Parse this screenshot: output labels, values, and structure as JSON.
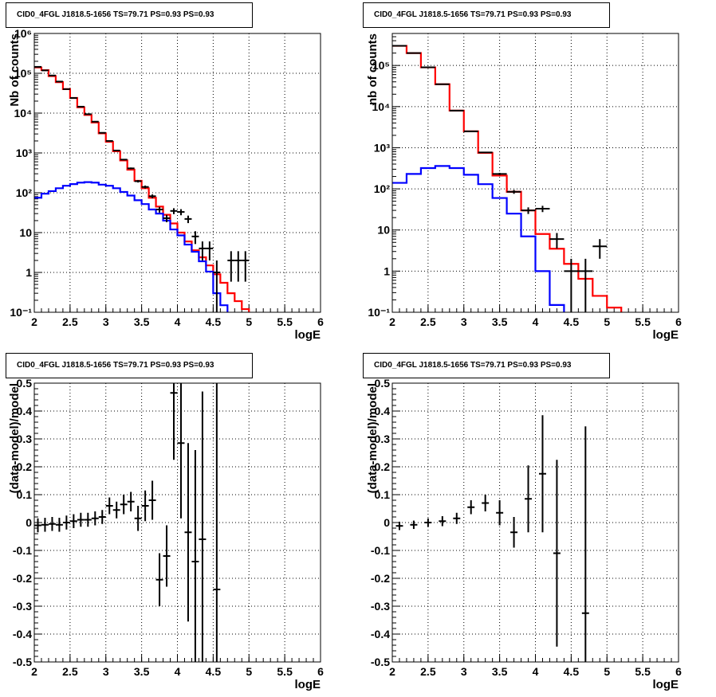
{
  "chart_data": [
    {
      "type": "line",
      "title": "CID0_4FGL J1818.5-1656 TS=79.71 PS=0.93 PS=0.93",
      "xlabel": "logE",
      "ylabel": "Nb of counts",
      "xlim": [
        2,
        6
      ],
      "ylim": [
        0.1,
        1000000
      ],
      "yscale": "log",
      "grid": true,
      "xticks": [
        "2",
        "2.5",
        "3",
        "3.5",
        "4",
        "4.5",
        "5",
        "5.5",
        "6"
      ],
      "yticks": [
        "10⁻¹",
        "1",
        "10",
        "10²",
        "10³",
        "10⁴",
        "10⁵",
        "10⁶"
      ],
      "bin_edges": [
        2.0,
        2.1,
        2.2,
        2.3,
        2.4,
        2.5,
        2.6,
        2.7,
        2.8,
        2.9,
        3.0,
        3.1,
        3.2,
        3.3,
        3.4,
        3.5,
        3.6,
        3.7,
        3.8,
        3.9,
        4.0,
        4.1,
        4.2,
        4.3,
        4.4,
        4.5,
        4.6,
        4.7,
        4.8,
        4.9,
        5.0,
        5.1,
        5.2,
        5.3,
        5.4,
        5.5,
        5.6,
        5.7,
        5.8,
        5.9,
        6.0
      ],
      "series": [
        {
          "color": "#ff0000",
          "style": "step",
          "values": [
            140000,
            120000,
            85000,
            60000,
            40000,
            24000,
            14000,
            9000,
            5800,
            3100,
            1900,
            1100,
            650,
            380,
            200,
            130,
            75,
            45,
            28,
            17,
            10,
            6,
            3.6,
            2.4,
            1.5,
            0.9,
            0.55,
            0.3,
            0.19,
            0.12,
            0.08,
            0.055,
            0.05,
            0.05,
            0.05,
            0.05,
            0.05,
            0.05,
            0.05,
            0.05
          ]
        },
        {
          "color": "#0000ff",
          "style": "step",
          "values": [
            75,
            95,
            110,
            130,
            150,
            165,
            180,
            185,
            180,
            160,
            150,
            130,
            105,
            85,
            65,
            52,
            38,
            30,
            20,
            12,
            8.5,
            5,
            3.3,
            1.9,
            1.05,
            0.3,
            0.15,
            0.09,
            0.05,
            0.05,
            0.05,
            0.05,
            0.05,
            0.05,
            0.05,
            0.05,
            0.05,
            0.05,
            0.05,
            0.05
          ]
        },
        {
          "color": "#000000",
          "style": "points",
          "points": [
            {
              "x": 2.05,
              "y": 145000
            },
            {
              "x": 2.15,
              "y": 118000
            },
            {
              "x": 2.25,
              "y": 88000
            },
            {
              "x": 2.35,
              "y": 62000
            },
            {
              "x": 2.45,
              "y": 40000
            },
            {
              "x": 2.55,
              "y": 24000
            },
            {
              "x": 2.65,
              "y": 14500
            },
            {
              "x": 2.75,
              "y": 9400
            },
            {
              "x": 2.85,
              "y": 6100
            },
            {
              "x": 2.95,
              "y": 3200
            },
            {
              "x": 3.05,
              "y": 2000
            },
            {
              "x": 3.15,
              "y": 1150
            },
            {
              "x": 3.25,
              "y": 680
            },
            {
              "x": 3.35,
              "y": 410
            },
            {
              "x": 3.45,
              "y": 195
            },
            {
              "x": 3.55,
              "y": 140
            },
            {
              "x": 3.65,
              "y": 82
            },
            {
              "x": 3.75,
              "y": 38
            },
            {
              "x": 3.85,
              "y": 23
            },
            {
              "x": 3.95,
              "y": 35
            },
            {
              "x": 4.05,
              "y": 33
            },
            {
              "x": 4.15,
              "y": 22
            },
            {
              "x": 4.25,
              "y": 8
            },
            {
              "x": 4.35,
              "y": 4
            },
            {
              "x": 4.45,
              "y": 4
            },
            {
              "x": 4.55,
              "y": 1
            },
            {
              "x": 4.75,
              "y": 2
            },
            {
              "x": 4.85,
              "y": 2
            },
            {
              "x": 4.95,
              "y": 2
            }
          ]
        }
      ]
    },
    {
      "type": "line",
      "title": "CID0_4FGL J1818.5-1656 TS=79.71 PS=0.93 PS=0.93",
      "xlabel": "logE",
      "ylabel": "nb of counts",
      "xlim": [
        2,
        6
      ],
      "ylim": [
        0.1,
        600000
      ],
      "yscale": "log",
      "grid": true,
      "xticks": [
        "2",
        "2.5",
        "3",
        "3.5",
        "4",
        "4.5",
        "5",
        "5.5",
        "6"
      ],
      "yticks": [
        "10⁻¹",
        "1",
        "10",
        "10²",
        "10³",
        "10⁴",
        "10⁵"
      ],
      "bin_edges": [
        2.0,
        2.2,
        2.4,
        2.6,
        2.8,
        3.0,
        3.2,
        3.4,
        3.6,
        3.8,
        4.0,
        4.2,
        4.4,
        4.6,
        4.8,
        5.0,
        5.2,
        5.4,
        5.6,
        5.8,
        6.0
      ],
      "series": [
        {
          "color": "#ff0000",
          "style": "step",
          "values": [
            300000,
            200000,
            90000,
            35000,
            8000,
            2500,
            750,
            210,
            85,
            30,
            8,
            3.5,
            1.5,
            0.65,
            0.25,
            0.13,
            0.08,
            0.08,
            0.08,
            0.08
          ]
        },
        {
          "color": "#0000ff",
          "style": "step",
          "values": [
            140,
            230,
            320,
            360,
            320,
            220,
            130,
            60,
            25,
            7,
            1,
            0.15,
            0.08,
            0.08,
            0.08,
            0.08,
            0.08,
            0.08,
            0.08,
            0.08
          ]
        },
        {
          "color": "#000000",
          "style": "points",
          "points": [
            {
              "x": 2.1,
              "y": 300000
            },
            {
              "x": 2.3,
              "y": 200000
            },
            {
              "x": 2.5,
              "y": 90000
            },
            {
              "x": 2.7,
              "y": 35000
            },
            {
              "x": 2.9,
              "y": 8000
            },
            {
              "x": 3.1,
              "y": 2500
            },
            {
              "x": 3.3,
              "y": 770
            },
            {
              "x": 3.5,
              "y": 230
            },
            {
              "x": 3.7,
              "y": 85
            },
            {
              "x": 3.9,
              "y": 30
            },
            {
              "x": 4.1,
              "y": 33
            },
            {
              "x": 4.3,
              "y": 6
            },
            {
              "x": 4.5,
              "y": 1
            },
            {
              "x": 4.7,
              "y": 1
            },
            {
              "x": 4.9,
              "y": 4
            }
          ]
        }
      ]
    },
    {
      "type": "scatter",
      "title": "CID0_4FGL J1818.5-1656 TS=79.71 PS=0.93 PS=0.93",
      "xlabel": "logE",
      "ylabel": "(data-model)/model",
      "xlim": [
        2,
        6
      ],
      "ylim": [
        -0.5,
        0.5
      ],
      "grid": true,
      "xticks": [
        "2",
        "2.5",
        "3",
        "3.5",
        "4",
        "4.5",
        "5",
        "5.5",
        "6"
      ],
      "yticks": [
        "-0.5",
        "-0.4",
        "-0.3",
        "-0.2",
        "-0.1",
        "0",
        "0.1",
        "0.2",
        "0.3",
        "0.4",
        "0.5"
      ],
      "points": [
        {
          "x": 2.05,
          "y": -0.01,
          "err": 0.025
        },
        {
          "x": 2.15,
          "y": -0.008,
          "err": 0.025
        },
        {
          "x": 2.25,
          "y": -0.005,
          "err": 0.025
        },
        {
          "x": 2.35,
          "y": -0.008,
          "err": 0.025
        },
        {
          "x": 2.45,
          "y": 0.0,
          "err": 0.025
        },
        {
          "x": 2.55,
          "y": 0.005,
          "err": 0.025
        },
        {
          "x": 2.65,
          "y": 0.01,
          "err": 0.025
        },
        {
          "x": 2.75,
          "y": 0.01,
          "err": 0.025
        },
        {
          "x": 2.85,
          "y": 0.015,
          "err": 0.025
        },
        {
          "x": 2.95,
          "y": 0.02,
          "err": 0.025
        },
        {
          "x": 3.05,
          "y": 0.06,
          "err": 0.03
        },
        {
          "x": 3.15,
          "y": 0.045,
          "err": 0.03
        },
        {
          "x": 3.25,
          "y": 0.065,
          "err": 0.035
        },
        {
          "x": 3.35,
          "y": 0.075,
          "err": 0.035
        },
        {
          "x": 3.45,
          "y": 0.015,
          "err": 0.045
        },
        {
          "x": 3.55,
          "y": 0.06,
          "err": 0.055
        },
        {
          "x": 3.65,
          "y": 0.08,
          "err": 0.07
        },
        {
          "x": 3.75,
          "y": -0.205,
          "err": 0.095
        },
        {
          "x": 3.85,
          "y": -0.12,
          "err": 0.11
        },
        {
          "x": 3.95,
          "y": 0.465,
          "err": 0.24
        },
        {
          "x": 4.05,
          "y": 0.285,
          "err": 0.27
        },
        {
          "x": 4.15,
          "y": -0.035,
          "err": 0.32
        },
        {
          "x": 4.25,
          "y": -0.14,
          "err": 0.4
        },
        {
          "x": 4.35,
          "y": -0.06,
          "err": 0.53
        },
        {
          "x": 4.55,
          "y": -0.24,
          "err": 0.75
        }
      ]
    },
    {
      "type": "scatter",
      "title": "CID0_4FGL J1818.5-1656 TS=79.71 PS=0.93 PS=0.93",
      "xlabel": "logE",
      "ylabel": "(data-model)/model",
      "xlim": [
        2,
        6
      ],
      "ylim": [
        -0.5,
        0.5
      ],
      "grid": true,
      "xticks": [
        "2",
        "2.5",
        "3",
        "3.5",
        "4",
        "4.5",
        "5",
        "5.5",
        "6"
      ],
      "yticks": [
        "-0.5",
        "-0.4",
        "-0.3",
        "-0.2",
        "-0.1",
        "0",
        "0.1",
        "0.2",
        "0.3",
        "0.4",
        "0.5"
      ],
      "points": [
        {
          "x": 2.1,
          "y": -0.012,
          "err": 0.015
        },
        {
          "x": 2.3,
          "y": -0.008,
          "err": 0.015
        },
        {
          "x": 2.5,
          "y": 0.0,
          "err": 0.015
        },
        {
          "x": 2.7,
          "y": 0.005,
          "err": 0.018
        },
        {
          "x": 2.9,
          "y": 0.015,
          "err": 0.02
        },
        {
          "x": 3.1,
          "y": 0.055,
          "err": 0.025
        },
        {
          "x": 3.3,
          "y": 0.07,
          "err": 0.03
        },
        {
          "x": 3.5,
          "y": 0.035,
          "err": 0.045
        },
        {
          "x": 3.7,
          "y": -0.035,
          "err": 0.055
        },
        {
          "x": 3.9,
          "y": 0.085,
          "err": 0.12
        },
        {
          "x": 4.1,
          "y": 0.175,
          "err": 0.21
        },
        {
          "x": 4.3,
          "y": -0.11,
          "err": 0.335
        },
        {
          "x": 4.7,
          "y": -0.325,
          "err": 0.67
        }
      ]
    }
  ]
}
